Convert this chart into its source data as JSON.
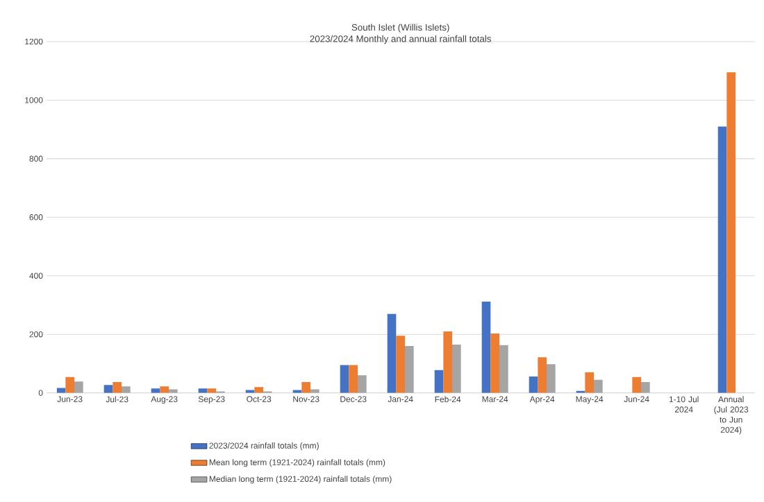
{
  "chart_data": {
    "type": "bar",
    "title": "South Islet (Willis Islets)",
    "subtitle": "2023/2024 Monthly and annual rainfall totals",
    "categories": [
      "Jun-23",
      "Jul-23",
      "Aug-23",
      "Sep-23",
      "Oct-23",
      "Nov-23",
      "Dec-23",
      "Jan-24",
      "Feb-24",
      "Mar-24",
      "Apr-24",
      "May-24",
      "Jun-24",
      "1-10 Jul 2024",
      "Annual (Jul 2023 to Jun 2024)"
    ],
    "series": [
      {
        "name": "2023/2024  rainfall totals (mm)",
        "color": "#4472c4",
        "values": [
          17,
          27,
          15,
          15,
          10,
          10,
          95,
          270,
          78,
          312,
          56,
          7,
          null,
          null,
          910
        ]
      },
      {
        "name": "Mean long term  (1921-2024) rainfall totals  (mm)",
        "color": "#ed7d31",
        "values": [
          54,
          37,
          22,
          15,
          20,
          37,
          95,
          195,
          210,
          203,
          122,
          70,
          54,
          null,
          1095
        ]
      },
      {
        "name": "Median long term  (1921-2024) rainfall totals  (mm)",
        "color": "#a5a5a5",
        "values": [
          39,
          22,
          12,
          5,
          5,
          12,
          60,
          160,
          165,
          163,
          98,
          45,
          37,
          null,
          null
        ]
      }
    ],
    "ylim": [
      0,
      1200
    ],
    "yticks": [
      0,
      200,
      400,
      600,
      800,
      1000,
      1200
    ],
    "grid": "y",
    "legend": "bottom left"
  }
}
